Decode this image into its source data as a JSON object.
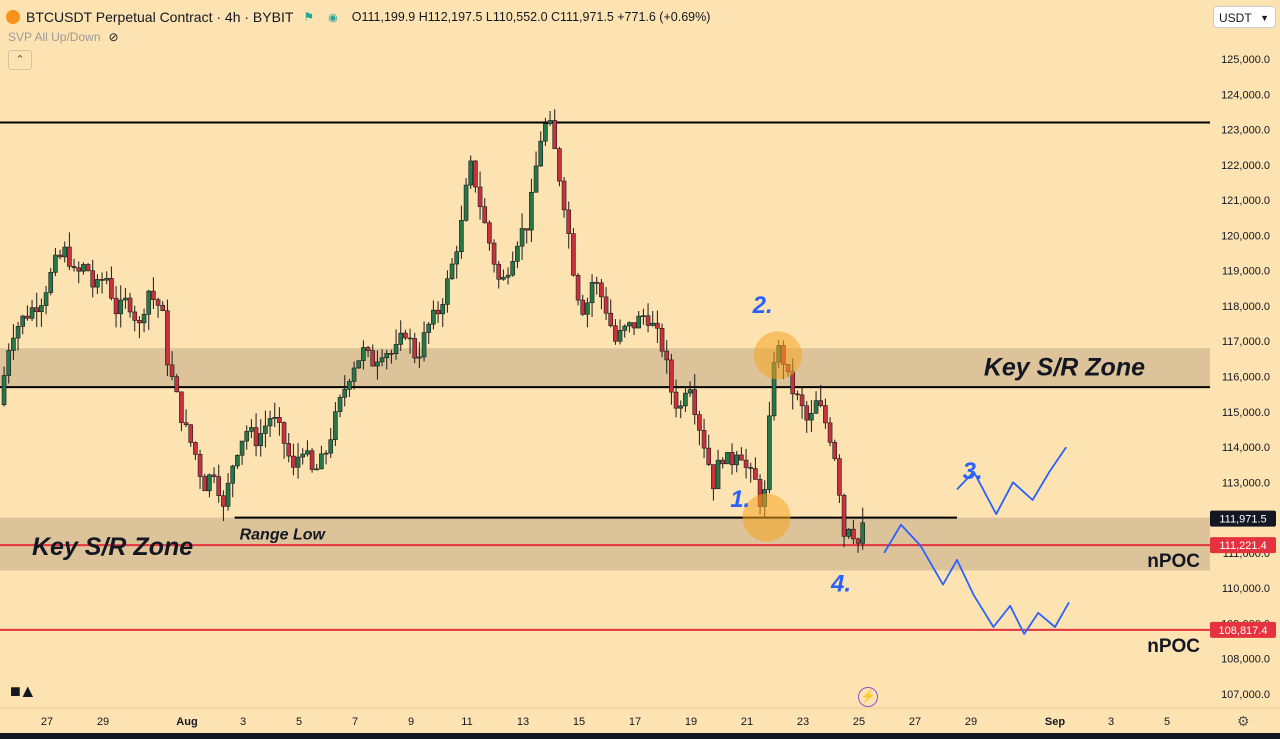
{
  "header": {
    "symbol": "BTCUSDT Perpetual Contract · 4h · BYBIT",
    "ohlc": "O111,199.9 H112,197.5 L110,552.0 C111,971.5 +771.6 (+0.69%)",
    "indicator_label": "SVP All Up/Down",
    "currency": "USDT"
  },
  "icons": [
    "bitcoin-logo-icon",
    "flag-icon",
    "eye-off-icon",
    "chevron-up-icon",
    "chevron-down-icon",
    "tradingview-logo-icon",
    "flash-icon",
    "gear-icon"
  ],
  "colors": {
    "background": "#fde3b1",
    "up": "#26784a",
    "down": "#c8323f",
    "zone": "#d6bd97",
    "annotation": "#2962ff",
    "npoc": "#e5323e",
    "highlight": "#f5a623"
  },
  "chart_data": {
    "type": "candlestick",
    "timeframe": "4h",
    "ylim": [
      106600,
      125800
    ],
    "y_ticks": [
      107000,
      108000,
      109000,
      110000,
      111000,
      112000,
      113000,
      114000,
      115000,
      116000,
      117000,
      118000,
      119000,
      120000,
      121000,
      122000,
      123000,
      124000,
      125000
    ],
    "y_tick_labels": [
      "107,000.0",
      "108,000.0",
      "109,000.0",
      "110,000.0",
      "111,000.0",
      "112,000.0",
      "113,000.0",
      "114,000.0",
      "115,000.0",
      "116,000.0",
      "117,000.0",
      "118,000.0",
      "119,000.0",
      "120,000.0",
      "121,000.0",
      "122,000.0",
      "123,000.0",
      "124,000.0",
      "125,000.0"
    ],
    "x_ticks": [
      {
        "day": -4,
        "label": "27"
      },
      {
        "day": -2,
        "label": "29"
      },
      {
        "day": 1,
        "label": "Aug"
      },
      {
        "day": 3,
        "label": "3"
      },
      {
        "day": 5,
        "label": "5"
      },
      {
        "day": 7,
        "label": "7"
      },
      {
        "day": 9,
        "label": "9"
      },
      {
        "day": 11,
        "label": "11"
      },
      {
        "day": 13,
        "label": "13"
      },
      {
        "day": 15,
        "label": "15"
      },
      {
        "day": 17,
        "label": "17"
      },
      {
        "day": 19,
        "label": "19"
      },
      {
        "day": 21,
        "label": "21"
      },
      {
        "day": 23,
        "label": "23"
      },
      {
        "day": 25,
        "label": "25"
      },
      {
        "day": 27,
        "label": "27"
      },
      {
        "day": 29,
        "label": "29"
      },
      {
        "day": 32,
        "label": "Sep"
      },
      {
        "day": 34,
        "label": "3"
      },
      {
        "day": 36,
        "label": "5"
      }
    ],
    "price_path": [
      [
        -5.7,
        115200
      ],
      [
        -5.3,
        117200
      ],
      [
        -4.8,
        117700
      ],
      [
        -4.2,
        118200
      ],
      [
        -3.7,
        119200
      ],
      [
        -3.3,
        119600
      ],
      [
        -3.0,
        118800
      ],
      [
        -2.6,
        119200
      ],
      [
        -2.3,
        118400
      ],
      [
        -1.9,
        118900
      ],
      [
        -1.5,
        117800
      ],
      [
        -1.1,
        118200
      ],
      [
        -0.7,
        117400
      ],
      [
        -0.4,
        118500
      ],
      [
        -0.2,
        118200
      ],
      [
        0.1,
        117900
      ],
      [
        0.3,
        116500
      ],
      [
        0.5,
        115800
      ],
      [
        0.9,
        114600
      ],
      [
        1.3,
        113800
      ],
      [
        1.6,
        112900
      ],
      [
        2.0,
        113400
      ],
      [
        2.3,
        112200
      ],
      [
        2.7,
        113800
      ],
      [
        3.1,
        114500
      ],
      [
        3.5,
        114200
      ],
      [
        4.0,
        114900
      ],
      [
        4.4,
        114300
      ],
      [
        4.8,
        113300
      ],
      [
        5.1,
        114100
      ],
      [
        5.5,
        113200
      ],
      [
        5.9,
        113700
      ],
      [
        6.3,
        114800
      ],
      [
        6.6,
        115600
      ],
      [
        6.9,
        116300
      ],
      [
        7.3,
        116700
      ],
      [
        7.6,
        116400
      ],
      [
        8.0,
        116800
      ],
      [
        8.4,
        116600
      ],
      [
        8.8,
        117300
      ],
      [
        9.2,
        116500
      ],
      [
        9.6,
        117400
      ],
      [
        10.0,
        117900
      ],
      [
        10.4,
        118900
      ],
      [
        10.8,
        120300
      ],
      [
        11.1,
        122000
      ],
      [
        11.3,
        121500
      ],
      [
        11.6,
        120400
      ],
      [
        11.9,
        119500
      ],
      [
        12.2,
        118500
      ],
      [
        12.5,
        119200
      ],
      [
        12.8,
        119900
      ],
      [
        13.2,
        120400
      ],
      [
        13.6,
        122700
      ],
      [
        13.9,
        123300
      ],
      [
        14.2,
        122100
      ],
      [
        14.5,
        120800
      ],
      [
        14.9,
        118500
      ],
      [
        15.2,
        117800
      ],
      [
        15.5,
        118800
      ],
      [
        15.9,
        118100
      ],
      [
        16.3,
        117000
      ],
      [
        16.6,
        117300
      ],
      [
        17.0,
        117500
      ],
      [
        17.4,
        117800
      ],
      [
        17.7,
        117300
      ],
      [
        18.0,
        116800
      ],
      [
        18.3,
        115600
      ],
      [
        18.6,
        115000
      ],
      [
        18.9,
        116100
      ],
      [
        19.2,
        114900
      ],
      [
        19.5,
        114000
      ],
      [
        19.8,
        113000
      ],
      [
        20.1,
        113800
      ],
      [
        20.4,
        113500
      ],
      [
        20.7,
        114100
      ],
      [
        21.0,
        113300
      ],
      [
        21.3,
        113000
      ],
      [
        21.5,
        112400
      ],
      [
        21.7,
        112800
      ],
      [
        21.9,
        116500
      ],
      [
        22.2,
        116800
      ],
      [
        22.5,
        115800
      ],
      [
        22.9,
        115200
      ],
      [
        23.2,
        114600
      ],
      [
        23.5,
        115300
      ],
      [
        23.8,
        114700
      ],
      [
        24.1,
        114000
      ],
      [
        24.3,
        112800
      ],
      [
        24.5,
        111300
      ],
      [
        24.7,
        112100
      ],
      [
        24.9,
        111100
      ],
      [
        25.1,
        111600
      ],
      [
        25.25,
        111971.5
      ]
    ],
    "last_price": 111971.5,
    "last_price_label": "111,971.5",
    "horizontal_lines": [
      {
        "price": 123200,
        "color": "#000000",
        "label": ""
      },
      {
        "price": 115700,
        "color": "#000000",
        "label": ""
      },
      {
        "price": 111221.4,
        "color": "#e5323e",
        "label": "nPOC",
        "tag": "111,221.4"
      },
      {
        "price": 108817.4,
        "color": "#e5323e",
        "label": "nPOC",
        "tag": "108,817.4"
      }
    ],
    "zones": [
      {
        "label": "Key S/R Zone",
        "top": 116800,
        "bottom": 115700,
        "label_side": "right"
      },
      {
        "label": "Key S/R Zone",
        "top": 112000,
        "bottom": 110500,
        "label_side": "left"
      }
    ],
    "range_low": {
      "label": "Range Low",
      "price": 112000,
      "from_day": 2.7,
      "to_day": 28.5
    },
    "annotations": [
      {
        "label": "1.",
        "day": 20.4,
        "price": 112300
      },
      {
        "label": "2.",
        "day": 21.2,
        "price": 117800
      },
      {
        "label": "3.",
        "day": 28.7,
        "price": 113100
      },
      {
        "label": "4.",
        "day": 24.0,
        "price": 109900
      }
    ],
    "highlight_circles": [
      {
        "day": 21.7,
        "price": 112000
      },
      {
        "day": 22.1,
        "price": 116600
      }
    ],
    "projection_paths": [
      [
        [
          25.9,
          111000
        ],
        [
          26.5,
          111800
        ],
        [
          27.2,
          111200
        ],
        [
          28.0,
          110100
        ],
        [
          28.5,
          110800
        ],
        [
          29.1,
          109800
        ],
        [
          29.8,
          108900
        ],
        [
          30.4,
          109500
        ],
        [
          30.9,
          108700
        ],
        [
          31.4,
          109300
        ],
        [
          32.0,
          108900
        ],
        [
          32.5,
          109600
        ]
      ],
      [
        [
          28.5,
          112800
        ],
        [
          29.1,
          113300
        ],
        [
          29.9,
          112100
        ],
        [
          30.5,
          113000
        ],
        [
          31.2,
          112500
        ],
        [
          31.8,
          113300
        ],
        [
          32.4,
          114000
        ]
      ]
    ]
  }
}
